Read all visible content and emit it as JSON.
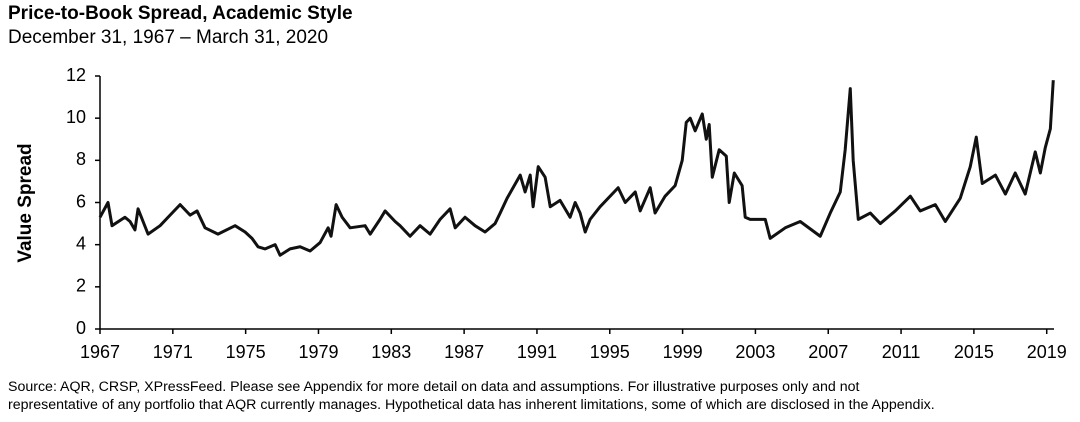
{
  "chart_data": {
    "type": "line",
    "title": "Price-to-Book Spread, Academic Style",
    "subtitle": "December 31, 1967 – March 31, 2020",
    "y_label": "Value Spread",
    "footnote": [
      "Source: AQR, CRSP, XPressFeed. Please see Appendix for more detail on data and assumptions. For illustrative purposes only and not",
      "representative of any portfolio that AQR currently manages. Hypothetical data has inherent limitations, some of which are disclosed in the Appendix."
    ],
    "color": "#111111",
    "xlim": [
      1967,
      2019.4
    ],
    "xticks": [
      1967,
      1971,
      1975,
      1979,
      1983,
      1987,
      1991,
      1995,
      1999,
      2003,
      2007,
      2011,
      2015,
      2019
    ],
    "ylim": [
      0,
      12
    ],
    "yticks": [
      0,
      2,
      4,
      6,
      8,
      10,
      12
    ],
    "x": [
      1967,
      1967.44,
      1967.66,
      1968.37,
      1968.65,
      1968.92,
      1969.09,
      1969.64,
      1970.3,
      1970.85,
      1971.4,
      1971.95,
      1972.33,
      1972.77,
      1973.48,
      1974.42,
      1974.97,
      1975.35,
      1975.68,
      1976.07,
      1976.62,
      1976.89,
      1977.44,
      1977.99,
      1978.54,
      1979.09,
      1979.53,
      1979.69,
      1979.97,
      1980.3,
      1980.74,
      1981.56,
      1981.84,
      1982.38,
      1982.66,
      1983.21,
      1983.48,
      1984.03,
      1984.58,
      1985.13,
      1985.68,
      1986.23,
      1986.51,
      1987.05,
      1987.6,
      1988.15,
      1988.7,
      1988.98,
      1989.36,
      1990.08,
      1990.35,
      1990.63,
      1990.79,
      1991.07,
      1991.45,
      1991.73,
      1992.27,
      1992.82,
      1993.1,
      1993.37,
      1993.65,
      1993.92,
      1994.47,
      1995.46,
      1995.85,
      1996.4,
      1996.67,
      1997.22,
      1997.49,
      1998.04,
      1998.59,
      1998.98,
      1999.2,
      1999.42,
      1999.69,
      2000.08,
      2000.3,
      2000.46,
      2000.63,
      2001.01,
      2001.4,
      2001.56,
      2001.84,
      2002.27,
      2002.44,
      2002.71,
      2003.54,
      2003.81,
      2004.64,
      2005.46,
      2006.56,
      2007.11,
      2007.66,
      2007.93,
      2008.21,
      2008.37,
      2008.65,
      2009.31,
      2009.86,
      2010.68,
      2011.51,
      2012.05,
      2012.88,
      2013.43,
      2014.25,
      2014.8,
      2015.13,
      2015.46,
      2016.18,
      2016.73,
      2017.27,
      2017.82,
      2018.37,
      2018.65,
      2018.92,
      2019.2,
      2019.36
    ],
    "values": [
      5.3,
      6.0,
      4.9,
      5.3,
      5.1,
      4.7,
      5.7,
      4.5,
      4.9,
      5.4,
      5.9,
      5.4,
      5.6,
      4.8,
      4.5,
      4.9,
      4.6,
      4.3,
      3.9,
      3.8,
      4.0,
      3.5,
      3.8,
      3.9,
      3.7,
      4.1,
      4.8,
      4.4,
      5.9,
      5.3,
      4.8,
      4.9,
      4.5,
      5.2,
      5.6,
      5.1,
      4.9,
      4.4,
      4.9,
      4.5,
      5.2,
      5.7,
      4.8,
      5.3,
      4.9,
      4.6,
      5.0,
      5.5,
      6.2,
      7.3,
      6.5,
      7.3,
      5.8,
      7.7,
      7.2,
      5.8,
      6.1,
      5.3,
      6.0,
      5.5,
      4.6,
      5.2,
      5.8,
      6.7,
      6.0,
      6.5,
      5.6,
      6.7,
      5.5,
      6.3,
      6.8,
      8.0,
      9.8,
      10.0,
      9.4,
      10.2,
      9.0,
      9.7,
      7.2,
      8.5,
      8.2,
      6.0,
      7.4,
      6.8,
      5.3,
      5.2,
      5.2,
      4.3,
      4.8,
      5.1,
      4.4,
      5.5,
      6.5,
      8.5,
      11.4,
      8.0,
      5.2,
      5.5,
      5.0,
      5.6,
      6.3,
      5.6,
      5.9,
      5.1,
      6.2,
      7.7,
      9.1,
      6.9,
      7.3,
      6.4,
      7.4,
      6.4,
      8.4,
      7.4,
      8.6,
      9.5,
      11.8
    ]
  }
}
